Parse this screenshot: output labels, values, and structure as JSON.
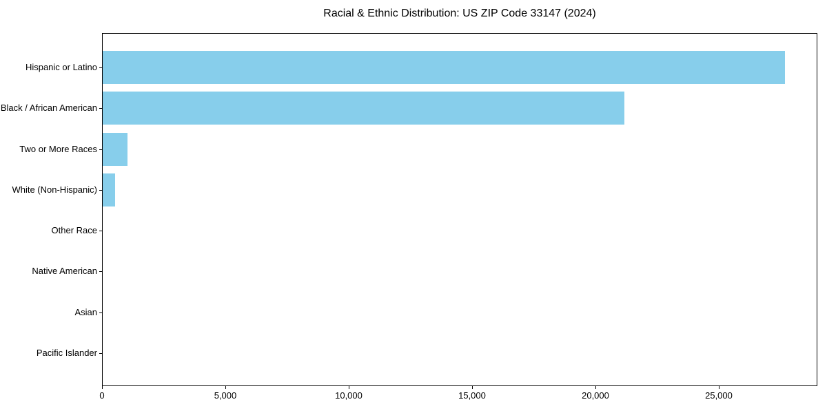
{
  "chart_data": {
    "type": "bar",
    "orientation": "horizontal",
    "title": "Racial & Ethnic Distribution: US ZIP Code 33147 (2024)",
    "categories": [
      "Hispanic or Latino",
      "Black / African American",
      "Two or More Races",
      "White (Non-Hispanic)",
      "Other Race",
      "Native American",
      "Asian",
      "Pacific Islander"
    ],
    "values": [
      27700,
      21200,
      1000,
      500,
      0,
      0,
      0,
      0
    ],
    "xlabel": "",
    "ylabel": "",
    "xlim": [
      0,
      29000
    ],
    "x_ticks": [
      {
        "value": 0,
        "label": "0"
      },
      {
        "value": 5000,
        "label": "5,000"
      },
      {
        "value": 10000,
        "label": "10,000"
      },
      {
        "value": 15000,
        "label": "15,000"
      },
      {
        "value": 20000,
        "label": "20,000"
      },
      {
        "value": 25000,
        "label": "25,000"
      }
    ],
    "bar_color": "#87CEEB",
    "axis_color": "#000000",
    "text_color": "#000000",
    "background_color": "#FFFFFF",
    "grid": false,
    "legend": "none"
  }
}
